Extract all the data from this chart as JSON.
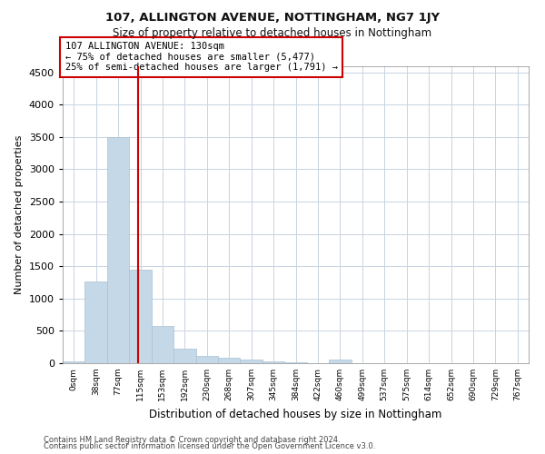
{
  "title1": "107, ALLINGTON AVENUE, NOTTINGHAM, NG7 1JY",
  "title2": "Size of property relative to detached houses in Nottingham",
  "xlabel": "Distribution of detached houses by size in Nottingham",
  "ylabel": "Number of detached properties",
  "footer1": "Contains HM Land Registry data © Crown copyright and database right 2024.",
  "footer2": "Contains public sector information licensed under the Open Government Licence v3.0.",
  "annotation_line1": "107 ALLINGTON AVENUE: 130sqm",
  "annotation_line2": "← 75% of detached houses are smaller (5,477)",
  "annotation_line3": "25% of semi-detached houses are larger (1,791) →",
  "bar_color": "#c5d8e8",
  "bar_edge_color": "#a8c0d4",
  "vline_color": "#cc0000",
  "categories": [
    "0sqm",
    "38sqm",
    "77sqm",
    "115sqm",
    "153sqm",
    "192sqm",
    "230sqm",
    "268sqm",
    "307sqm",
    "345sqm",
    "384sqm",
    "422sqm",
    "460sqm",
    "499sqm",
    "537sqm",
    "575sqm",
    "614sqm",
    "652sqm",
    "690sqm",
    "729sqm",
    "767sqm"
  ],
  "values": [
    30,
    1270,
    3500,
    1450,
    575,
    230,
    115,
    90,
    55,
    25,
    10,
    5,
    50,
    5,
    0,
    0,
    0,
    0,
    0,
    0,
    0
  ],
  "ylim": [
    0,
    4600
  ],
  "yticks": [
    0,
    500,
    1000,
    1500,
    2000,
    2500,
    3000,
    3500,
    4000,
    4500
  ],
  "background_color": "#ffffff",
  "grid_color": "#c8d4e0"
}
